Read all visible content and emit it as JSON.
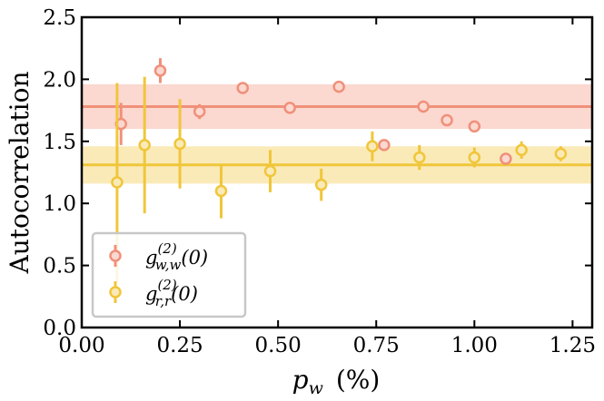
{
  "chart_data": {
    "type": "scatter",
    "xlabel": "p_w (%)",
    "xlabel_var": "p",
    "xlabel_sub": "w",
    "xlabel_unit": "(%)",
    "ylabel": "Autocorrelation",
    "xlim": [
      0.0,
      1.3
    ],
    "ylim": [
      0.0,
      2.5
    ],
    "xticks": [
      0.0,
      0.25,
      0.5,
      0.75,
      1.0,
      1.25
    ],
    "xtick_labels": [
      "0.00",
      "0.25",
      "0.50",
      "0.75",
      "1.00",
      "1.25"
    ],
    "yticks": [
      0.0,
      0.5,
      1.0,
      1.5,
      2.0,
      2.5
    ],
    "ytick_labels": [
      "0.0",
      "0.5",
      "1.0",
      "1.5",
      "2.0",
      "2.5"
    ],
    "legend_position": "lower-left",
    "series": [
      {
        "name": "g_{w,w}^{(2)}(0)",
        "legend_main": "g",
        "legend_sup": "(2)",
        "legend_sub": "w,w",
        "legend_tail": "(0)",
        "color": "#f0907a",
        "band_color": "#fbd8d0",
        "mean": 1.78,
        "band": [
          1.6,
          1.96
        ],
        "points": [
          {
            "x": 0.1,
            "y": 1.64,
            "err": 0.17
          },
          {
            "x": 0.2,
            "y": 2.07,
            "err": 0.1
          },
          {
            "x": 0.3,
            "y": 1.74,
            "err": 0.06
          },
          {
            "x": 0.41,
            "y": 1.93,
            "err": 0.03
          },
          {
            "x": 0.53,
            "y": 1.77,
            "err": 0.03
          },
          {
            "x": 0.655,
            "y": 1.94,
            "err": 0.03
          },
          {
            "x": 0.77,
            "y": 1.47,
            "err": 0.03
          },
          {
            "x": 0.87,
            "y": 1.78,
            "err": 0.03
          },
          {
            "x": 0.93,
            "y": 1.67,
            "err": 0.03
          },
          {
            "x": 1.0,
            "y": 1.62,
            "err": 0.03
          },
          {
            "x": 1.08,
            "y": 1.36,
            "err": 0.03
          }
        ]
      },
      {
        "name": "g_{r,r}^{(2)}(0)",
        "legend_main": "g",
        "legend_sup": "(2)",
        "legend_sub": "r,r",
        "legend_tail": "(0)",
        "color": "#f0c63a",
        "band_color": "#faeab8",
        "mean": 1.31,
        "band": [
          1.16,
          1.46
        ],
        "points": [
          {
            "x": 0.09,
            "y": 1.17,
            "err": 0.8
          },
          {
            "x": 0.16,
            "y": 1.47,
            "err": 0.55
          },
          {
            "x": 0.25,
            "y": 1.48,
            "err": 0.36
          },
          {
            "x": 0.355,
            "y": 1.1,
            "err": 0.22
          },
          {
            "x": 0.48,
            "y": 1.26,
            "err": 0.17
          },
          {
            "x": 0.61,
            "y": 1.15,
            "err": 0.13
          },
          {
            "x": 0.74,
            "y": 1.46,
            "err": 0.12
          },
          {
            "x": 0.86,
            "y": 1.37,
            "err": 0.1
          },
          {
            "x": 1.0,
            "y": 1.37,
            "err": 0.08
          },
          {
            "x": 1.12,
            "y": 1.43,
            "err": 0.07
          },
          {
            "x": 1.22,
            "y": 1.4,
            "err": 0.06
          }
        ]
      }
    ]
  }
}
